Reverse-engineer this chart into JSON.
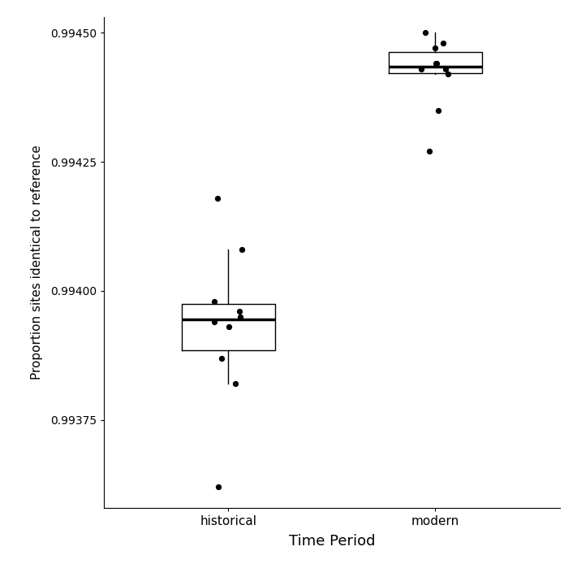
{
  "historical_data": [
    0.99362,
    0.99382,
    0.99387,
    0.99393,
    0.99394,
    0.99395,
    0.99396,
    0.99398,
    0.99408,
    0.99418
  ],
  "modern_data": [
    0.99427,
    0.99435,
    0.99442,
    0.99443,
    0.99443,
    0.99444,
    0.99444,
    0.99447,
    0.99448,
    0.9945
  ],
  "categories": [
    "historical",
    "modern"
  ],
  "xlabel": "Time Period",
  "ylabel": "Proportion sites identical to reference",
  "ylim_min": 0.99358,
  "ylim_max": 0.99453,
  "ytick_values": [
    0.99375,
    0.994,
    0.99425,
    0.9945
  ],
  "ytick_labels": [
    "0.99375",
    "0.99400",
    "0.99425",
    "0.99450"
  ],
  "background_color": "#ffffff",
  "box_color": "#000000",
  "median_color": "#000000",
  "whisker_color": "#000000",
  "flier_color": "#000000",
  "box_width": 0.45,
  "linewidth": 1.0,
  "median_linewidth": 2.5,
  "point_size": 18,
  "jitter_seed": 12
}
